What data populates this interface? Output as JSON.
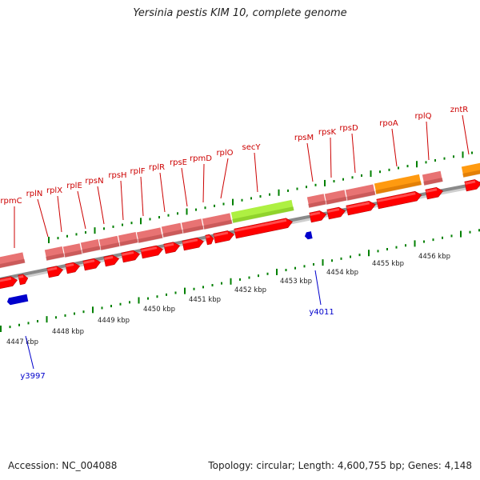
{
  "title": "Yersinia pestis KIM 10, complete genome",
  "footer": {
    "accession": "Accession: NC_004088",
    "summary": "Topology: circular; Length: 4,600,755 bp; Genes: 4,148"
  },
  "colors": {
    "gene_fill": "#ff0000",
    "gene_stroke": "#bb0000",
    "cds_block": "#e87373",
    "highlight_green": "#aef042",
    "highlight_orange": "#ff9a10",
    "marker_blue": "#0000cc",
    "tick_green": "#008000",
    "backbone": "#999999",
    "gene_label": "#cc0000"
  },
  "genes": [
    {
      "label": "rpmC"
    },
    {
      "label": "rplN"
    },
    {
      "label": "rplX"
    },
    {
      "label": "rplE"
    },
    {
      "label": "rpsN"
    },
    {
      "label": "rpsH"
    },
    {
      "label": "rplF"
    },
    {
      "label": "rplR"
    },
    {
      "label": "rpsE"
    },
    {
      "label": "rpmD"
    },
    {
      "label": "rplO"
    },
    {
      "label": "secY"
    },
    {
      "label": "rpsM"
    },
    {
      "label": "rpsK"
    },
    {
      "label": "rpsD"
    },
    {
      "label": "rpoA"
    },
    {
      "label": "rplQ"
    },
    {
      "label": "zntR"
    }
  ],
  "coordinate_labels": [
    "4447 kbp",
    "4448 kbp",
    "4449 kbp",
    "4450 kbp",
    "4451 kbp",
    "4452 kbp",
    "4453 kbp",
    "4454 kbp",
    "4455 kbp",
    "4456 kbp"
  ],
  "markers": [
    {
      "label": "y3997"
    },
    {
      "label": "y4011"
    }
  ]
}
